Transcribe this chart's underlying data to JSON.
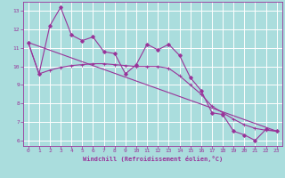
{
  "xlabel": "Windchill (Refroidissement éolien,°C)",
  "bg_color": "#aadddd",
  "grid_color": "#ffffff",
  "line_color": "#993399",
  "xlim": [
    -0.5,
    23.5
  ],
  "ylim": [
    5.7,
    13.5
  ],
  "yticks": [
    6,
    7,
    8,
    9,
    10,
    11,
    12,
    13
  ],
  "xticks": [
    0,
    1,
    2,
    3,
    4,
    5,
    6,
    7,
    8,
    9,
    10,
    11,
    12,
    13,
    14,
    15,
    16,
    17,
    18,
    19,
    20,
    21,
    22,
    23
  ],
  "line1_x": [
    0,
    1,
    2,
    3,
    4,
    5,
    6,
    7,
    8,
    9,
    10,
    11,
    12,
    13,
    14,
    15,
    16,
    17,
    18,
    19,
    20,
    21,
    22,
    23
  ],
  "line1_y": [
    11.3,
    9.6,
    12.2,
    13.2,
    11.7,
    11.4,
    11.6,
    10.8,
    10.7,
    9.6,
    10.1,
    11.2,
    10.9,
    11.2,
    10.6,
    9.4,
    8.7,
    7.5,
    7.4,
    6.5,
    6.3,
    6.0,
    6.6,
    6.5
  ],
  "line2_x": [
    0,
    1,
    2,
    3,
    4,
    5,
    6,
    7,
    8,
    9,
    10,
    11,
    12,
    13,
    14,
    15,
    16,
    17,
    18,
    19,
    20,
    21,
    22,
    23
  ],
  "line2_y": [
    11.3,
    9.6,
    9.8,
    9.95,
    10.05,
    10.1,
    10.15,
    10.15,
    10.1,
    10.05,
    10.0,
    10.0,
    10.0,
    9.9,
    9.5,
    9.0,
    8.5,
    7.85,
    7.5,
    7.15,
    6.85,
    6.65,
    6.55,
    6.5
  ],
  "trend_x": [
    0,
    23
  ],
  "trend_y": [
    11.3,
    6.5
  ]
}
